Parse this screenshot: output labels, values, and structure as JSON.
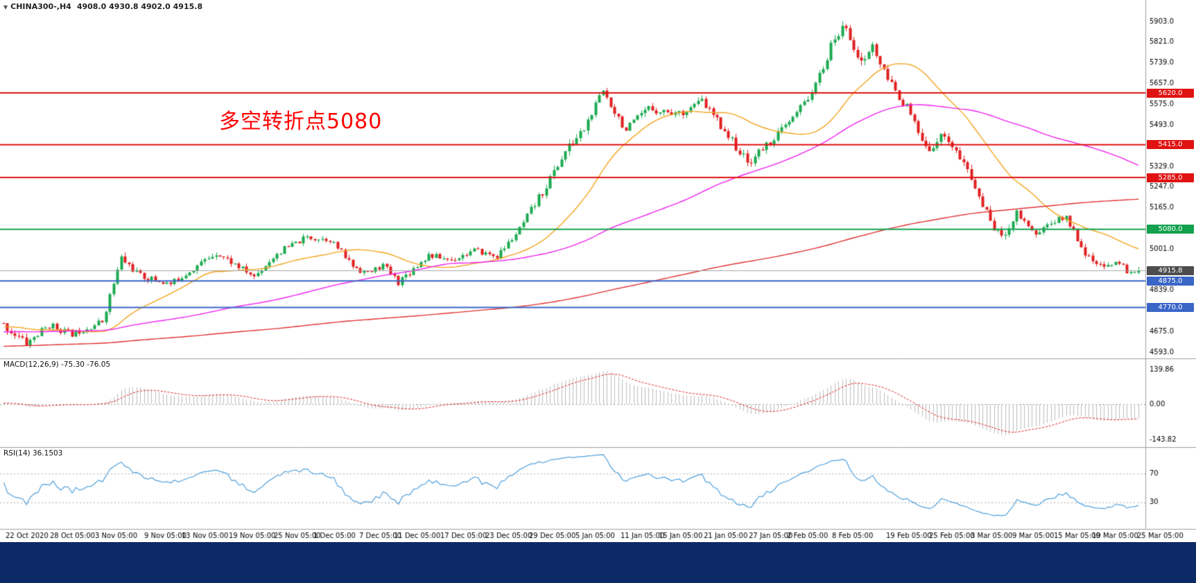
{
  "symbol_line": {
    "marker": "▼",
    "title": "CHINA300-,H4",
    "quote": "4908.0 4930.8 4902.0 4915.8"
  },
  "annotation": {
    "text": "多空转折点5080",
    "color": "#ff0000"
  },
  "bottom_bar": {
    "color": "#0c2a66"
  },
  "chart_data": {
    "type": "candlestick",
    "title": "CHINA300- H4",
    "last_quote": {
      "open": 4908.0,
      "high": 4930.8,
      "low": 4902.0,
      "close": 4915.8
    },
    "price_axis": {
      "min": 4593.0,
      "max": 5903.0,
      "ticks": [
        5903,
        5821,
        5739,
        5657,
        5575,
        5493,
        5411,
        5329,
        5247,
        5165,
        5083,
        5001,
        4919,
        4839,
        4757,
        4675,
        4593
      ]
    },
    "hlines": [
      {
        "price": 5620.0,
        "color": "#e01212",
        "label": "5620.0"
      },
      {
        "price": 5415.0,
        "color": "#e01212",
        "label": "5415.0"
      },
      {
        "price": 5285.0,
        "color": "#e01212",
        "label": "5285.0"
      },
      {
        "price": 5080.0,
        "color": "#12a14e",
        "label": "5080.0"
      },
      {
        "price": 4875.0,
        "color": "#3a66c8",
        "label": "4875.0"
      },
      {
        "price": 4770.0,
        "color": "#3a66c8",
        "label": "4770.0"
      }
    ],
    "current_price": 4915.8,
    "current_price_color": "#4d4d4d",
    "candle_colors": {
      "up": "#1caa50",
      "down": "#e02020"
    },
    "x_labels": [
      [
        "22 Oct 2020",
        8
      ],
      [
        "28 Oct 05:00",
        72
      ],
      [
        "3 Nov 05:00",
        137
      ],
      [
        "9 Nov 05:00",
        208
      ],
      [
        "13 Nov 05:00",
        262
      ],
      [
        "19 Nov 05:00",
        330
      ],
      [
        "25 Nov 05:00",
        395
      ],
      [
        "1 Dec 05:00",
        452
      ],
      [
        "7 Dec 05:00",
        518
      ],
      [
        "11 Dec 05:00",
        568
      ],
      [
        "17 Dec 05:00",
        635
      ],
      [
        "23 Dec 05:00",
        700
      ],
      [
        "29 Dec 05:00",
        763
      ],
      [
        "5 Jan 05:00",
        830
      ],
      [
        "11 Jan 05:00",
        895
      ],
      [
        "15 Jan 05:00",
        950
      ],
      [
        "21 Jan 05:00",
        1015
      ],
      [
        "27 Jan 05:00",
        1080
      ],
      [
        "2 Feb 05:00",
        1135
      ],
      [
        "8 Feb 05:00",
        1200
      ],
      [
        "19 Feb 05:00",
        1278
      ],
      [
        "25 Feb 05:00",
        1340
      ],
      [
        "3 Mar 05:00",
        1400
      ],
      [
        "9 Mar 05:00",
        1460
      ],
      [
        "15 Mar 05:00",
        1520
      ],
      [
        "19 Mar 05:00",
        1575
      ],
      [
        "25 Mar 05:00",
        1640
      ]
    ],
    "candles": {
      "count": 300,
      "seed": 11,
      "prehistory": {
        "count": 300,
        "start": 4520
      },
      "anchors": [
        [
          0,
          4700,
          18
        ],
        [
          6,
          4628,
          20
        ],
        [
          12,
          4700,
          16
        ],
        [
          18,
          4665,
          14
        ],
        [
          26,
          4715,
          13
        ],
        [
          31,
          4965,
          20
        ],
        [
          36,
          4895,
          15
        ],
        [
          44,
          4862,
          14
        ],
        [
          48,
          4905,
          14
        ],
        [
          56,
          4988,
          15
        ],
        [
          60,
          4950,
          14
        ],
        [
          66,
          4892,
          14
        ],
        [
          72,
          4985,
          15
        ],
        [
          80,
          5048,
          14
        ],
        [
          86,
          5040,
          12
        ],
        [
          92,
          4935,
          15
        ],
        [
          96,
          4905,
          14
        ],
        [
          100,
          4938,
          12
        ],
        [
          104,
          4872,
          15
        ],
        [
          112,
          4978,
          13
        ],
        [
          118,
          4958,
          12
        ],
        [
          124,
          4996,
          12
        ],
        [
          130,
          4972,
          12
        ],
        [
          136,
          5078,
          15
        ],
        [
          142,
          5228,
          20
        ],
        [
          148,
          5388,
          20
        ],
        [
          153,
          5478,
          19
        ],
        [
          158,
          5628,
          19
        ],
        [
          164,
          5472,
          19
        ],
        [
          170,
          5558,
          17
        ],
        [
          178,
          5538,
          16
        ],
        [
          184,
          5588,
          16
        ],
        [
          190,
          5472,
          17
        ],
        [
          196,
          5342,
          19
        ],
        [
          202,
          5428,
          17
        ],
        [
          208,
          5518,
          17
        ],
        [
          214,
          5648,
          19
        ],
        [
          219,
          5838,
          22
        ],
        [
          222,
          5885,
          26
        ],
        [
          226,
          5732,
          24
        ],
        [
          229,
          5808,
          20
        ],
        [
          232,
          5698,
          22
        ],
        [
          238,
          5562,
          21
        ],
        [
          243,
          5392,
          21
        ],
        [
          248,
          5458,
          17
        ],
        [
          254,
          5312,
          20
        ],
        [
          259,
          5142,
          22
        ],
        [
          263,
          5042,
          20
        ],
        [
          267,
          5148,
          17
        ],
        [
          272,
          5062,
          15
        ],
        [
          276,
          5108,
          15
        ],
        [
          280,
          5128,
          13
        ],
        [
          286,
          4962,
          16
        ],
        [
          290,
          4922,
          13
        ],
        [
          293,
          4958,
          12
        ],
        [
          297,
          4902,
          11
        ],
        [
          299,
          4915.8,
          8
        ]
      ]
    },
    "moving_averages": [
      {
        "period": 26,
        "color": "#f2a41c"
      },
      {
        "period": 90,
        "color": "#ee22ee"
      },
      {
        "period": 280,
        "color": "#e03030"
      }
    ],
    "macd": {
      "label": "MACD(12,26,9) -75.30 -76.05",
      "fast": 12,
      "slow": 26,
      "signal": 9,
      "main_value": -75.3,
      "signal_value": -76.05,
      "ticks": [
        139.86,
        0.0,
        -143.82
      ],
      "histogram_color": "#bdbdbd",
      "signal_color": "#e02020"
    },
    "rsi": {
      "label": "RSI(14) 36.1503",
      "period": 14,
      "value": 36.1503,
      "levels": [
        70,
        30
      ],
      "color": "#4d9fdc"
    }
  }
}
